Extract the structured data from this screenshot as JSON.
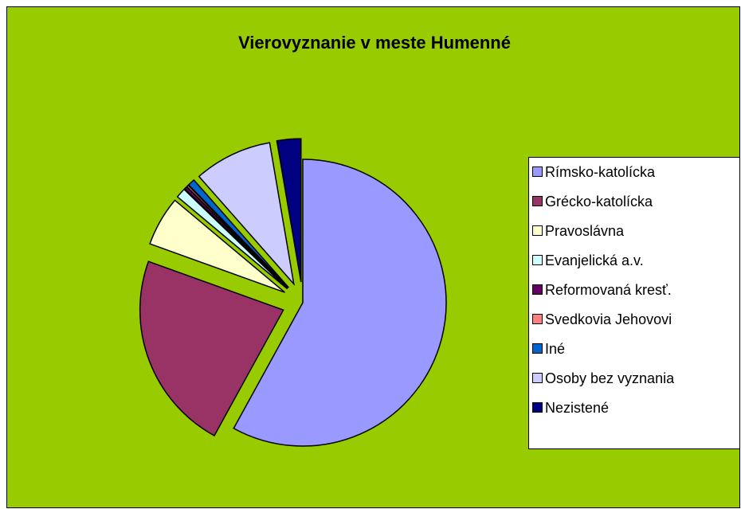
{
  "chart_data": {
    "type": "pie",
    "title": "Vierovyznanie v meste Humenné",
    "categories": [
      "Rímsko-katolícka",
      "Grécko-katolícka",
      "Pravoslávna",
      "Evanjelická a.v.",
      "Reformovaná kresť.",
      "Svedkovia Jehovovi",
      "Iné",
      "Osoby bez vyznania",
      "Nezistené"
    ],
    "values": [
      58,
      22.5,
      5.6,
      1.1,
      0.3,
      0.2,
      0.8,
      8.8,
      2.7
    ],
    "colors": [
      "#9999ff",
      "#993366",
      "#ffffcc",
      "#ccffff",
      "#660066",
      "#ff8080",
      "#0066cc",
      "#ccccff",
      "#000080"
    ],
    "legend": "right"
  }
}
